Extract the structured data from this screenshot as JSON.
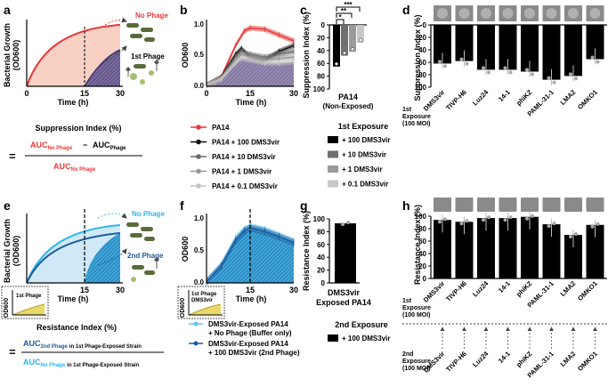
{
  "panels": {
    "a": {
      "letter": "a",
      "ylabel_1": "Bacterial Growth",
      "ylabel_2": "(OD600)",
      "xlabel": "Time (h)",
      "xticks": [
        "0",
        "15",
        "30"
      ],
      "label_no_phage": "No Phage",
      "label_first_phage": "1st Phage",
      "si_title": "Suppression Index (%)",
      "equals": "=",
      "auc_main": "AUC",
      "sub_no_phage": "No Phage",
      "minus": "−",
      "sub_phage": "Phage"
    },
    "b": {
      "letter": "b",
      "ylabel": "OD600",
      "xlabel": "Time (h)",
      "xticks": [
        "0",
        "15",
        "30"
      ],
      "yticks": [
        "0.0",
        "0.5",
        "1.0"
      ],
      "legend": [
        {
          "label": "PA14",
          "color": "#e8393a"
        },
        {
          "label": "PA14 + 100 DMS3vir",
          "color": "#111111"
        },
        {
          "label": "PA14 + 10 DMS3vir",
          "color": "#6b6b6b"
        },
        {
          "label": "PA14 + 1 DMS3vir",
          "color": "#999999"
        },
        {
          "label": "PA14 + 0.1 DMS3vir",
          "color": "#c4c4c4"
        }
      ]
    },
    "c": {
      "letter": "c",
      "ylabel": "Suppression Index (%)",
      "yticks": [
        "0",
        "20",
        "40",
        "60",
        "80",
        "100"
      ],
      "stars": [
        "*",
        "**",
        "***"
      ],
      "xlabel_1": "PA14",
      "xlabel_2": "(Non-Exposed)",
      "legend_title": "1st Exposure",
      "legend": [
        {
          "label": "+ 100 DMS3vir",
          "color": "#000000"
        },
        {
          "label": "+ 10 DMS3vir",
          "color": "#707070"
        },
        {
          "label": "+ 1 DMS3vir",
          "color": "#9a9a9a"
        },
        {
          "label": "+ 0.1 DMS3vir",
          "color": "#c8c8c8"
        }
      ]
    },
    "d": {
      "letter": "d",
      "ylabel": "Suppression Index (%)",
      "yticks": [
        "0",
        "20",
        "40",
        "60",
        "80",
        "100"
      ],
      "categories": [
        "DMS3vir",
        "TIVP-H6",
        "Luz24",
        "14-1",
        "phiKZ",
        "PAML-31-1",
        "LMA2",
        "OMKO1"
      ],
      "values": [
        62,
        58,
        72,
        72,
        75,
        88,
        82,
        55
      ],
      "exposure_1": "1st",
      "exposure_2": "Exposure",
      "exposure_3": "(100 MOI)"
    },
    "e": {
      "letter": "e",
      "ylabel_1": "Bacterial Growth",
      "ylabel_2": "(OD600)",
      "xlabel": "Time (h)",
      "xticks": [
        "0",
        "15",
        "30"
      ],
      "label_no_phage": "No Phage",
      "label_second_phage": "2nd Phage",
      "inset_label": "1st Phage",
      "inset_ylabel": "OD600",
      "ri_title": "Resistance Index (%)",
      "equals": "=",
      "auc_main": "AUC",
      "sub_top": "2nd Phage",
      "sub_top_rest": "in 1st Phage-Exposed Strain",
      "sub_bottom": "No Phage",
      "sub_bottom_rest": "in 1st Phage-Exposed Strain"
    },
    "f": {
      "letter": "f",
      "ylabel": "OD600",
      "xlabel": "Time (h)",
      "xticks": [
        "0",
        "15",
        "30"
      ],
      "yticks": [
        "0.0",
        "0.5",
        "1.0"
      ],
      "inset_label_1": "1st Phage",
      "inset_label_2": "DMS3vir",
      "inset_ylabel": "OD600",
      "legend": [
        {
          "label_1": "DMS3vir-Exposed PA14",
          "label_2": "+ No Phage (Buffer only)",
          "color": "#5bc8ee"
        },
        {
          "label_1": "DMS3vir-Exposed PA14",
          "label_2": "+ 100 DMS3vir (2nd Phage)",
          "color": "#1e5a9e"
        }
      ]
    },
    "g": {
      "letter": "g",
      "ylabel": "Resistance Index (%)",
      "yticks": [
        "0",
        "20",
        "40",
        "60",
        "80",
        "100"
      ],
      "value": 93,
      "xlabel_1": "DMS3vir",
      "xlabel_2": "Exposed PA14",
      "legend_title": "2nd Exposure",
      "legend": [
        {
          "label": "+ 100 DMS3vir",
          "color": "#000000"
        }
      ]
    },
    "h": {
      "letter": "h",
      "ylabel": "Resistance Index (%)",
      "yticks": [
        "0",
        "20",
        "40",
        "60",
        "80",
        "100"
      ],
      "categories": [
        "DMS3vir",
        "TIVP-H6",
        "Luz24",
        "14-1",
        "phiKZ",
        "PAML-31-1",
        "LMA2",
        "OMKO1"
      ],
      "values": [
        94,
        91,
        97,
        97,
        99,
        87,
        70,
        86
      ],
      "exposure_1": "1st",
      "exposure_2": "Exposure",
      "exposure_3": "(100 MOI)",
      "second_1": "2nd",
      "second_2": "Exposure",
      "second_3": "(100 MOI)",
      "categories_2": [
        "DMS3vir",
        "TIVP-H6",
        "Luz24",
        "14-1",
        "phiKZ",
        "PAML-31-1",
        "LMA2",
        "OMKO1"
      ]
    }
  },
  "chart_data": [
    {
      "type": "line",
      "panel": "b",
      "xlabel": "Time (h)",
      "ylabel": "OD600",
      "xlim": [
        0,
        30
      ],
      "ylim": [
        0,
        1.1
      ],
      "series": [
        {
          "name": "PA14",
          "x": [
            0,
            5,
            10,
            13,
            15,
            20,
            25,
            30
          ],
          "y": [
            0.02,
            0.15,
            0.7,
            0.95,
            1.0,
            0.98,
            0.88,
            0.78
          ]
        },
        {
          "name": "PA14 + 100 DMS3vir",
          "x": [
            0,
            5,
            10,
            12,
            15,
            20,
            25,
            30
          ],
          "y": [
            0.02,
            0.15,
            0.55,
            0.65,
            0.5,
            0.45,
            0.6,
            0.7
          ]
        },
        {
          "name": "PA14 + 10 DMS3vir",
          "x": [
            0,
            5,
            10,
            12,
            15,
            20,
            25,
            30
          ],
          "y": [
            0.02,
            0.14,
            0.5,
            0.6,
            0.55,
            0.5,
            0.55,
            0.6
          ]
        },
        {
          "name": "PA14 + 1 DMS3vir",
          "x": [
            0,
            5,
            10,
            12,
            15,
            20,
            25,
            30
          ],
          "y": [
            0.02,
            0.13,
            0.45,
            0.55,
            0.5,
            0.45,
            0.48,
            0.5
          ]
        },
        {
          "name": "PA14 + 0.1 DMS3vir",
          "x": [
            0,
            5,
            10,
            12,
            15,
            20,
            25,
            30
          ],
          "y": [
            0.02,
            0.12,
            0.4,
            0.48,
            0.45,
            0.4,
            0.4,
            0.42
          ]
        }
      ]
    },
    {
      "type": "bar",
      "panel": "c",
      "ylabel": "Suppression Index (%)",
      "ylim": [
        0,
        100
      ],
      "categories": [
        "+ 100 DMS3vir",
        "+ 10 DMS3vir",
        "+ 1 DMS3vir",
        "+ 0.1 DMS3vir"
      ],
      "values": [
        65,
        48,
        42,
        28
      ]
    },
    {
      "type": "bar",
      "panel": "d",
      "ylabel": "Suppression Index (%)",
      "ylim": [
        0,
        100
      ],
      "categories": [
        "DMS3vir",
        "TIVP-H6",
        "Luz24",
        "14-1",
        "phiKZ",
        "PAML-31-1",
        "LMA2",
        "OMKO1"
      ],
      "values": [
        62,
        58,
        72,
        72,
        75,
        88,
        82,
        55
      ]
    },
    {
      "type": "area",
      "panel": "f",
      "xlabel": "Time (h)",
      "ylabel": "OD600",
      "xlim": [
        0,
        30
      ],
      "ylim": [
        0,
        1.1
      ],
      "series": [
        {
          "name": "DMS3vir-Exposed PA14 + No Phage (Buffer only)",
          "x": [
            0,
            5,
            10,
            13,
            15,
            20,
            25,
            30
          ],
          "y": [
            0.02,
            0.3,
            0.75,
            0.9,
            0.95,
            0.9,
            0.8,
            0.7
          ]
        },
        {
          "name": "DMS3vir-Exposed PA14 + 100 DMS3vir (2nd Phage)",
          "x": [
            0,
            5,
            10,
            13,
            15,
            20,
            25,
            30
          ],
          "y": [
            0.02,
            0.28,
            0.72,
            0.88,
            0.93,
            0.87,
            0.78,
            0.68
          ]
        }
      ]
    },
    {
      "type": "bar",
      "panel": "g",
      "ylabel": "Resistance Index (%)",
      "ylim": [
        0,
        100
      ],
      "categories": [
        "DMS3vir Exposed PA14"
      ],
      "values": [
        93
      ]
    },
    {
      "type": "bar",
      "panel": "h",
      "ylabel": "Resistance Index (%)",
      "ylim": [
        0,
        100
      ],
      "categories": [
        "DMS3vir",
        "TIVP-H6",
        "Luz24",
        "14-1",
        "phiKZ",
        "PAML-31-1",
        "LMA2",
        "OMKO1"
      ],
      "values": [
        94,
        91,
        97,
        97,
        99,
        87,
        70,
        86
      ]
    }
  ]
}
